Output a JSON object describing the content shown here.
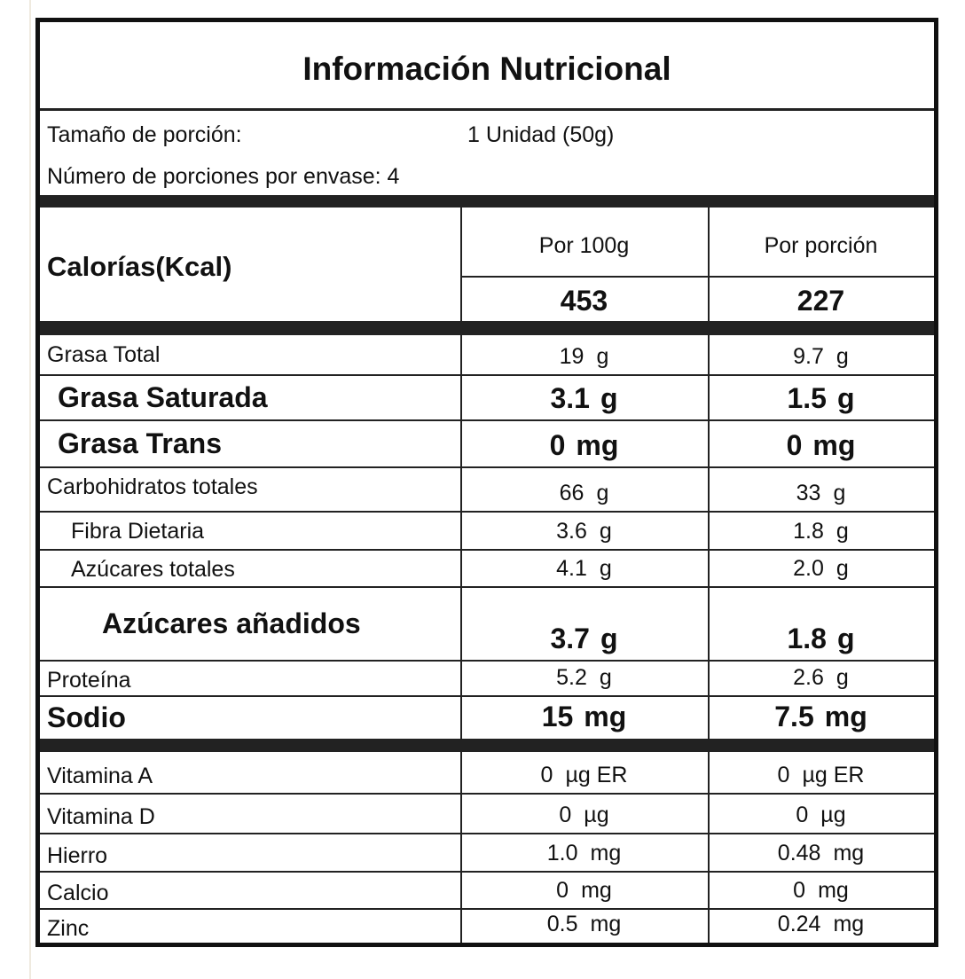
{
  "title": "Información Nutricional",
  "serving": {
    "size_label": "Tamaño de   porción:",
    "size_value": "1 Unidad (50g)",
    "servings_label": "Número de porciones por envase: 4"
  },
  "calories": {
    "label": "Calorías(Kcal)",
    "col1_header": "Por 100g",
    "col2_header": "Por porción",
    "col1_value": "453",
    "col2_value": "227"
  },
  "nutrients": [
    {
      "name": "Grasa Total",
      "style": "small",
      "per100": {
        "value": "19",
        "unit": "g"
      },
      "perServing": {
        "value": "9.7",
        "unit": "g"
      }
    },
    {
      "name": "Grasa Saturada",
      "style": "big",
      "per100": {
        "value": "3.1",
        "unit": "g"
      },
      "perServing": {
        "value": "1.5",
        "unit": "g"
      }
    },
    {
      "name": "Grasa Trans",
      "style": "big",
      "per100": {
        "value": "0",
        "unit": "mg"
      },
      "perServing": {
        "value": "0",
        "unit": "mg"
      }
    },
    {
      "name": "Carbohidratos totales",
      "style": "small",
      "per100": {
        "value": "66",
        "unit": "g"
      },
      "perServing": {
        "value": "33",
        "unit": "g"
      }
    },
    {
      "name": "Fibra Dietaria",
      "style": "small",
      "per100": {
        "value": "3.6",
        "unit": "g"
      },
      "perServing": {
        "value": "1.8",
        "unit": "g"
      }
    },
    {
      "name": "Azúcares totales",
      "style": "small",
      "per100": {
        "value": "4.1",
        "unit": "g"
      },
      "perServing": {
        "value": "2.0",
        "unit": "g"
      }
    },
    {
      "name": "Azúcares añadidos",
      "style": "big",
      "per100": {
        "value": "3.7",
        "unit": "g"
      },
      "perServing": {
        "value": "1.8",
        "unit": "g"
      }
    },
    {
      "name": "Proteína",
      "style": "small",
      "per100": {
        "value": "5.2",
        "unit": "g"
      },
      "perServing": {
        "value": "2.6",
        "unit": "g"
      }
    },
    {
      "name": "Sodio",
      "style": "big",
      "per100": {
        "value": "15",
        "unit": "mg"
      },
      "perServing": {
        "value": "7.5",
        "unit": "mg"
      }
    }
  ],
  "micronutrients": [
    {
      "name": "Vitamina A",
      "per100": {
        "value": "0",
        "unit": "µg ER"
      },
      "perServing": {
        "value": "0",
        "unit": "µg ER"
      }
    },
    {
      "name": "Vitamina D",
      "per100": {
        "value": "0",
        "unit": "µg"
      },
      "perServing": {
        "value": "0",
        "unit": "µg"
      }
    },
    {
      "name": "Hierro",
      "per100": {
        "value": "1.0",
        "unit": "mg"
      },
      "perServing": {
        "value": "0.48",
        "unit": "mg"
      }
    },
    {
      "name": "Calcio",
      "per100": {
        "value": "0",
        "unit": "mg"
      },
      "perServing": {
        "value": "0",
        "unit": "mg"
      }
    },
    {
      "name": "Zinc",
      "per100": {
        "value": "0.5",
        "unit": "mg"
      },
      "perServing": {
        "value": "0.24",
        "unit": "mg"
      }
    }
  ]
}
